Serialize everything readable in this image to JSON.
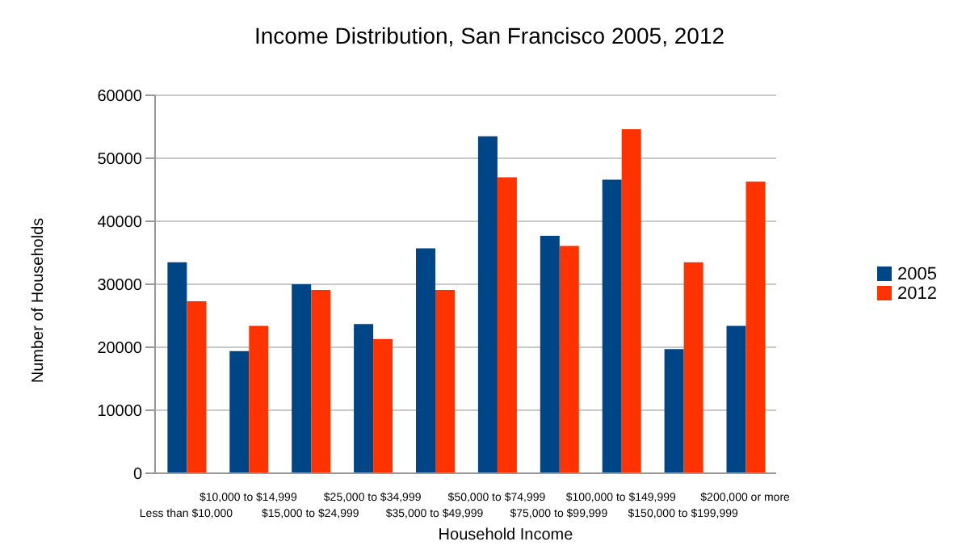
{
  "chart_data": {
    "type": "bar",
    "title": "Income Distribution, San Francisco 2005, 2012",
    "xlabel": "Household Income",
    "ylabel": "Number of Households",
    "categories": [
      "Less than $10,000",
      "$10,000 to $14,999",
      "$15,000 to $24,999",
      "$25,000 to $34,999",
      "$35,000 to $49,999",
      "$50,000 to $74,999",
      "$75,000 to $99,999",
      "$100,000 to $149,999",
      "$150,000 to $199,999",
      "$200,000 or more"
    ],
    "series": [
      {
        "name": "2005",
        "color": "#004586",
        "values": [
          33500,
          19400,
          30000,
          23700,
          35700,
          53500,
          37700,
          46600,
          19700,
          23400
        ]
      },
      {
        "name": "2012",
        "color": "#ff3300",
        "values": [
          27300,
          23400,
          29100,
          21300,
          29100,
          47000,
          36100,
          54600,
          33500,
          46300
        ]
      }
    ],
    "ylim": [
      0,
      60000
    ],
    "yticks": [
      0,
      10000,
      20000,
      30000,
      40000,
      50000,
      60000
    ],
    "grid": "y",
    "legend": "right"
  }
}
